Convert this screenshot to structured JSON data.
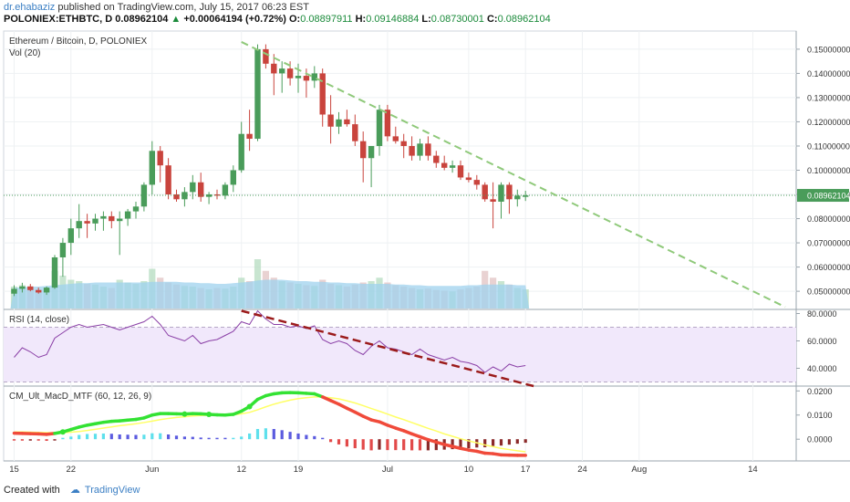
{
  "header": {
    "author": "dr.ehabaziz",
    "published_text": "published on TradingView.com, July 15, 2017 06:23 EST",
    "symbol": "POLONIEX:ETHBTC, D",
    "last": "0.08962104",
    "change_arrow": "▲",
    "change": "+0.00064194 (+0.72%)",
    "o_label": "O:",
    "o": "0.08897911",
    "h_label": "H:",
    "h": "0.09146884",
    "l_label": "L:",
    "l": "0.08730001",
    "c_label": "C:",
    "c": "0.08962104"
  },
  "footer": {
    "created_with": "Created with",
    "brand": "TradingView"
  },
  "colors": {
    "up": "#4a9c5a",
    "down": "#c9443d",
    "volume": "#9fd2ee",
    "trend_green": "#8fc97a",
    "trend_red": "#9b1b1b",
    "rsi_line": "#8a3fa6",
    "rsi_band": "#f1e8fb",
    "macd_green": "#33e233",
    "macd_red": "#f04a3a",
    "signal": "#ffff66",
    "hist_cyan": "#5ee0ec",
    "hist_blue": "#5b5bdf",
    "hist_red": "#e24a4a",
    "hist_maroon": "#8b2a2a",
    "price_label_bg": "#4a9c5a"
  },
  "chart_data": {
    "type": "candlestick",
    "title": "Ethereum / Bitcoin, D, POLONIEX",
    "volume_label": "Vol (20)",
    "price_axis": {
      "ylim": [
        0.0425,
        0.1575
      ],
      "ticks": [
        "0.15000000",
        "0.14000000",
        "0.13000000",
        "0.12000000",
        "0.11000000",
        "0.10000000",
        "0.09000000",
        "0.08000000",
        "0.07000000",
        "0.06000000",
        "0.05000000"
      ],
      "last_price_label": "0.08962104"
    },
    "x_ticks": [
      {
        "day": 0,
        "label": "15"
      },
      {
        "day": 7,
        "label": "22"
      },
      {
        "day": 17,
        "label": "Jun"
      },
      {
        "day": 28,
        "label": "12"
      },
      {
        "day": 35,
        "label": "19"
      },
      {
        "day": 46,
        "label": "Jul"
      },
      {
        "day": 56,
        "label": "10"
      },
      {
        "day": 63,
        "label": "17"
      },
      {
        "day": 70,
        "label": "24"
      },
      {
        "day": 77,
        "label": "Aug"
      },
      {
        "day": 91,
        "label": "14"
      }
    ],
    "start_date": "2017-05-15",
    "candles": [
      [
        0.049,
        0.0525,
        0.048,
        0.051
      ],
      [
        0.051,
        0.0535,
        0.0495,
        0.052
      ],
      [
        0.052,
        0.053,
        0.05,
        0.0505
      ],
      [
        0.0505,
        0.0515,
        0.049,
        0.0495
      ],
      [
        0.0495,
        0.052,
        0.0485,
        0.0515
      ],
      [
        0.0515,
        0.065,
        0.051,
        0.064
      ],
      [
        0.064,
        0.072,
        0.056,
        0.07
      ],
      [
        0.07,
        0.08,
        0.065,
        0.076
      ],
      [
        0.076,
        0.086,
        0.072,
        0.079
      ],
      [
        0.079,
        0.082,
        0.072,
        0.078
      ],
      [
        0.078,
        0.082,
        0.075,
        0.08
      ],
      [
        0.08,
        0.083,
        0.075,
        0.081
      ],
      [
        0.081,
        0.083,
        0.076,
        0.079
      ],
      [
        0.079,
        0.083,
        0.065,
        0.08
      ],
      [
        0.08,
        0.084,
        0.077,
        0.083
      ],
      [
        0.083,
        0.087,
        0.08,
        0.085
      ],
      [
        0.085,
        0.095,
        0.083,
        0.094
      ],
      [
        0.094,
        0.112,
        0.09,
        0.108
      ],
      [
        0.108,
        0.11,
        0.095,
        0.102
      ],
      [
        0.102,
        0.105,
        0.088,
        0.09
      ],
      [
        0.09,
        0.092,
        0.087,
        0.088
      ],
      [
        0.088,
        0.093,
        0.085,
        0.091
      ],
      [
        0.091,
        0.098,
        0.088,
        0.095
      ],
      [
        0.095,
        0.099,
        0.087,
        0.089
      ],
      [
        0.089,
        0.091,
        0.086,
        0.09
      ],
      [
        0.09,
        0.092,
        0.088,
        0.0895
      ],
      [
        0.0895,
        0.095,
        0.088,
        0.094
      ],
      [
        0.094,
        0.102,
        0.091,
        0.1
      ],
      [
        0.1,
        0.12,
        0.099,
        0.115
      ],
      [
        0.115,
        0.125,
        0.108,
        0.113
      ],
      [
        0.113,
        0.152,
        0.112,
        0.15
      ],
      [
        0.15,
        0.152,
        0.142,
        0.144
      ],
      [
        0.144,
        0.148,
        0.131,
        0.14
      ],
      [
        0.14,
        0.145,
        0.132,
        0.142
      ],
      [
        0.142,
        0.145,
        0.135,
        0.138
      ],
      [
        0.138,
        0.144,
        0.132,
        0.139
      ],
      [
        0.139,
        0.142,
        0.13,
        0.137
      ],
      [
        0.137,
        0.143,
        0.134,
        0.14
      ],
      [
        0.14,
        0.142,
        0.118,
        0.123
      ],
      [
        0.123,
        0.131,
        0.111,
        0.118
      ],
      [
        0.118,
        0.124,
        0.115,
        0.121
      ],
      [
        0.121,
        0.125,
        0.118,
        0.119
      ],
      [
        0.119,
        0.123,
        0.11,
        0.112
      ],
      [
        0.112,
        0.116,
        0.095,
        0.105
      ],
      [
        0.105,
        0.11,
        0.093,
        0.11
      ],
      [
        0.11,
        0.127,
        0.106,
        0.125
      ],
      [
        0.125,
        0.127,
        0.112,
        0.114
      ],
      [
        0.114,
        0.118,
        0.111,
        0.112
      ],
      [
        0.112,
        0.115,
        0.105,
        0.11
      ],
      [
        0.11,
        0.114,
        0.104,
        0.106
      ],
      [
        0.106,
        0.113,
        0.104,
        0.111
      ],
      [
        0.111,
        0.114,
        0.104,
        0.106
      ],
      [
        0.106,
        0.108,
        0.101,
        0.103
      ],
      [
        0.103,
        0.106,
        0.1,
        0.101
      ],
      [
        0.101,
        0.104,
        0.099,
        0.102
      ],
      [
        0.102,
        0.104,
        0.096,
        0.097
      ],
      [
        0.097,
        0.099,
        0.095,
        0.096
      ],
      [
        0.096,
        0.098,
        0.092,
        0.094
      ],
      [
        0.094,
        0.095,
        0.087,
        0.088
      ],
      [
        0.088,
        0.095,
        0.076,
        0.087
      ],
      [
        0.087,
        0.095,
        0.08,
        0.094
      ],
      [
        0.094,
        0.095,
        0.082,
        0.088
      ],
      [
        0.088,
        0.092,
        0.085,
        0.0895
      ],
      [
        0.089,
        0.0915,
        0.0873,
        0.0896
      ]
    ],
    "volume": [
      0.32,
      0.34,
      0.3,
      0.28,
      0.3,
      0.55,
      0.48,
      0.42,
      0.4,
      0.36,
      0.35,
      0.32,
      0.3,
      0.42,
      0.38,
      0.36,
      0.4,
      0.58,
      0.45,
      0.38,
      0.35,
      0.33,
      0.32,
      0.3,
      0.28,
      0.3,
      0.29,
      0.32,
      0.45,
      0.4,
      0.72,
      0.55,
      0.45,
      0.4,
      0.38,
      0.36,
      0.34,
      0.33,
      0.42,
      0.36,
      0.34,
      0.32,
      0.35,
      0.38,
      0.4,
      0.45,
      0.38,
      0.34,
      0.32,
      0.3,
      0.28,
      0.29,
      0.27,
      0.26,
      0.25,
      0.28,
      0.3,
      0.32,
      0.55,
      0.45,
      0.4,
      0.35,
      0.3,
      0.28
    ],
    "volume_ma": [
      0.3,
      0.31,
      0.32,
      0.32,
      0.33,
      0.34,
      0.35,
      0.36,
      0.37,
      0.37,
      0.38,
      0.38,
      0.38,
      0.38,
      0.38,
      0.38,
      0.38,
      0.39,
      0.39,
      0.39,
      0.39,
      0.38,
      0.38,
      0.37,
      0.37,
      0.36,
      0.36,
      0.37,
      0.38,
      0.39,
      0.41,
      0.42,
      0.42,
      0.42,
      0.41,
      0.4,
      0.4,
      0.39,
      0.39,
      0.38,
      0.38,
      0.37,
      0.37,
      0.36,
      0.36,
      0.36,
      0.36,
      0.35,
      0.35,
      0.34,
      0.34,
      0.33,
      0.33,
      0.33,
      0.33,
      0.33,
      0.34,
      0.34,
      0.35,
      0.35,
      0.35,
      0.35,
      0.34,
      0.34
    ],
    "price_trendline": {
      "from": {
        "day": 28,
        "price": 0.153
      },
      "to": {
        "day": 95,
        "price": 0.0435
      }
    },
    "rsi": {
      "label": "RSI (14, close)",
      "ylim": [
        27,
        83
      ],
      "ticks": [
        "80.0000",
        "60.0000",
        "40.0000"
      ],
      "bands": [
        70,
        30
      ],
      "values": [
        48,
        55,
        52,
        48,
        50,
        62,
        66,
        70,
        72,
        70,
        71,
        72,
        70,
        68,
        70,
        72,
        74,
        78,
        72,
        64,
        62,
        60,
        64,
        58,
        60,
        61,
        64,
        67,
        74,
        72,
        82,
        76,
        72,
        72,
        70,
        71,
        69,
        71,
        61,
        58,
        60,
        58,
        53,
        50,
        56,
        60,
        55,
        54,
        52,
        50,
        54,
        50,
        48,
        46,
        48,
        45,
        44,
        42,
        37,
        41,
        38,
        43,
        41,
        42
      ],
      "trendline": {
        "from": {
          "day": 28,
          "value": 82
        },
        "to": {
          "day": 64,
          "value": 27
        }
      }
    },
    "macd": {
      "label": "CM_Ult_MacD_MTF (60, 12, 26, 9)",
      "ylim": [
        -0.009,
        0.022
      ],
      "ticks": [
        "0.0200",
        "0.0100",
        "0.0000"
      ],
      "macd": [
        0.0025,
        0.0024,
        0.0023,
        0.0022,
        0.002,
        0.0024,
        0.003,
        0.004,
        0.005,
        0.0058,
        0.0064,
        0.007,
        0.0074,
        0.0076,
        0.0079,
        0.0082,
        0.0088,
        0.01,
        0.0106,
        0.0106,
        0.0105,
        0.0104,
        0.0106,
        0.0105,
        0.0103,
        0.0101,
        0.01,
        0.0103,
        0.0116,
        0.0135,
        0.0165,
        0.018,
        0.0188,
        0.0192,
        0.0193,
        0.0192,
        0.019,
        0.0188,
        0.0175,
        0.016,
        0.0145,
        0.0128,
        0.0112,
        0.0095,
        0.008,
        0.0072,
        0.0058,
        0.0046,
        0.0035,
        0.0022,
        0.001,
        -0.0002,
        -0.0012,
        -0.0022,
        -0.003,
        -0.0038,
        -0.0045,
        -0.005,
        -0.0058,
        -0.006,
        -0.0065,
        -0.0066,
        -0.0067,
        -0.0067
      ],
      "signal": [
        0.003,
        0.003,
        0.0029,
        0.0028,
        0.0027,
        0.0027,
        0.0027,
        0.0029,
        0.0032,
        0.0036,
        0.0041,
        0.0046,
        0.0051,
        0.0056,
        0.006,
        0.0064,
        0.0069,
        0.0075,
        0.0081,
        0.0086,
        0.009,
        0.0093,
        0.0096,
        0.0098,
        0.0099,
        0.01,
        0.01,
        0.0101,
        0.0105,
        0.0111,
        0.0122,
        0.0134,
        0.0145,
        0.0154,
        0.0162,
        0.0168,
        0.0172,
        0.0175,
        0.0175,
        0.0172,
        0.0167,
        0.0159,
        0.015,
        0.0139,
        0.0127,
        0.0116,
        0.0104,
        0.0092,
        0.0081,
        0.0069,
        0.0057,
        0.0045,
        0.0034,
        0.0022,
        0.0012,
        0.0002,
        -0.0007,
        -0.0015,
        -0.0024,
        -0.0031,
        -0.0038,
        -0.0043,
        -0.0048,
        -0.0052
      ],
      "cross_days": [
        6,
        29,
        21,
        24
      ]
    }
  }
}
